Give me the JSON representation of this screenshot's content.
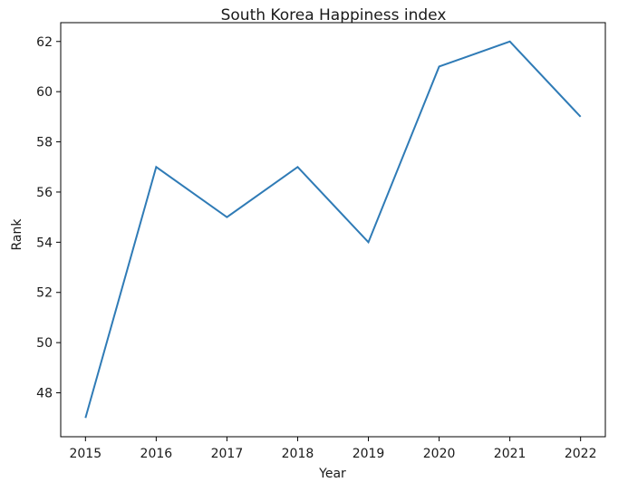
{
  "chart_data": {
    "type": "line",
    "title": "South Korea Happiness index",
    "xlabel": "Year",
    "ylabel": "Rank",
    "x": [
      2015,
      2016,
      2017,
      2018,
      2019,
      2020,
      2021,
      2022
    ],
    "series": [
      {
        "values": [
          47,
          57,
          55,
          57,
          54,
          61,
          62,
          59
        ],
        "color": "#2f7bb6"
      }
    ],
    "xlim": [
      2014.65,
      2022.35
    ],
    "ylim": [
      46.25,
      62.75
    ],
    "xticks": [
      "2015",
      "2016",
      "2017",
      "2018",
      "2019",
      "2020",
      "2021",
      "2022"
    ],
    "yticks": [
      "48",
      "50",
      "52",
      "54",
      "56",
      "58",
      "60",
      "62"
    ],
    "grid": false
  }
}
